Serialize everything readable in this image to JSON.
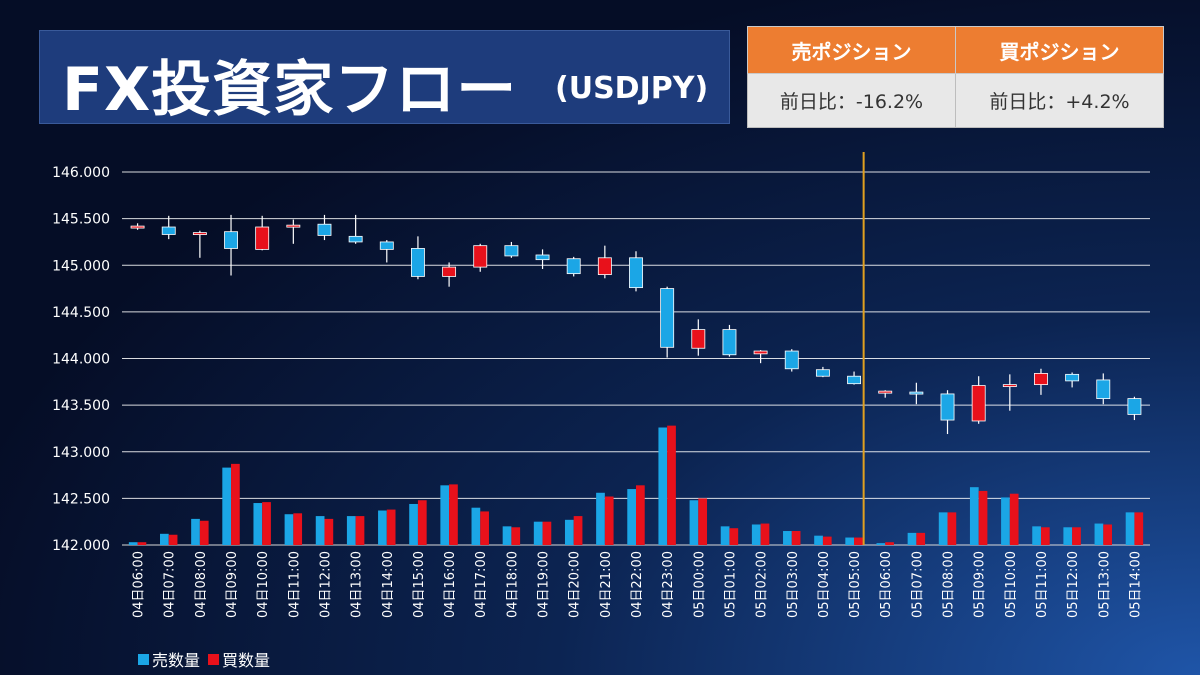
{
  "title": {
    "main": "FX投資家フロー",
    "pair": "(USDJPY)"
  },
  "positions": {
    "sell": {
      "header": "売ポジション",
      "change": "前日比：-16.2%"
    },
    "buy": {
      "header": "買ポジション",
      "change": "前日比：+4.2%"
    }
  },
  "legend": {
    "sell": "売数量",
    "buy": "買数量"
  },
  "colors": {
    "sell": "#1ba6e6",
    "buy": "#e8111b",
    "divider": "#e0a020",
    "grid": "#ffffff",
    "header": "#ed7d31"
  },
  "chart_data": {
    "type": "candlestick",
    "y_ticks": [
      "146.000",
      "145.500",
      "145.000",
      "144.500",
      "144.000",
      "143.500",
      "143.000",
      "142.500",
      "142.000"
    ],
    "ylim": [
      142.0,
      146.0
    ],
    "categories": [
      "04日06:00",
      "04日07:00",
      "04日08:00",
      "04日09:00",
      "04日10:00",
      "04日11:00",
      "04日12:00",
      "04日13:00",
      "04日14:00",
      "04日15:00",
      "04日16:00",
      "04日17:00",
      "04日18:00",
      "04日19:00",
      "04日20:00",
      "04日21:00",
      "04日22:00",
      "04日23:00",
      "05日00:00",
      "05日01:00",
      "05日02:00",
      "05日03:00",
      "05日04:00",
      "05日05:00",
      "05日06:00",
      "05日07:00",
      "05日08:00",
      "05日09:00",
      "05日10:00",
      "05日11:00",
      "05日12:00",
      "05日13:00",
      "05日14:00"
    ],
    "ohlc": [
      [
        145.4,
        145.45,
        145.38,
        145.42
      ],
      [
        145.41,
        145.53,
        145.28,
        145.33
      ],
      [
        145.34,
        145.37,
        145.08,
        145.35
      ],
      [
        145.36,
        145.54,
        144.89,
        145.18
      ],
      [
        145.17,
        145.53,
        145.16,
        145.41
      ],
      [
        145.41,
        145.49,
        145.23,
        145.43
      ],
      [
        145.44,
        145.54,
        145.27,
        145.32
      ],
      [
        145.31,
        145.54,
        145.23,
        145.25
      ],
      [
        145.25,
        145.27,
        145.03,
        145.17
      ],
      [
        145.18,
        145.31,
        144.85,
        144.88
      ],
      [
        144.88,
        145.03,
        144.77,
        144.98
      ],
      [
        144.98,
        145.23,
        144.93,
        145.21
      ],
      [
        145.21,
        145.25,
        145.08,
        145.1
      ],
      [
        145.11,
        145.17,
        144.96,
        145.06
      ],
      [
        145.07,
        145.09,
        144.88,
        144.91
      ],
      [
        144.9,
        145.21,
        144.86,
        145.08
      ],
      [
        145.08,
        145.15,
        144.72,
        144.76
      ],
      [
        144.75,
        144.77,
        144.01,
        144.12
      ],
      [
        144.11,
        144.42,
        144.03,
        144.31
      ],
      [
        144.31,
        144.36,
        144.02,
        144.04
      ],
      [
        144.05,
        144.09,
        143.95,
        144.08
      ],
      [
        144.08,
        144.1,
        143.86,
        143.89
      ],
      [
        143.88,
        143.91,
        143.8,
        143.81
      ],
      [
        143.81,
        143.86,
        143.72,
        143.73
      ],
      [
        143.64,
        143.66,
        143.58,
        143.65
      ],
      [
        143.64,
        143.74,
        143.51,
        143.62
      ],
      [
        143.62,
        143.66,
        143.19,
        143.34
      ],
      [
        143.33,
        143.81,
        143.3,
        143.71
      ],
      [
        143.72,
        143.83,
        143.44,
        143.72
      ],
      [
        143.72,
        143.89,
        143.61,
        143.84
      ],
      [
        143.83,
        143.85,
        143.69,
        143.76
      ],
      [
        143.77,
        143.84,
        143.51,
        143.57
      ],
      [
        143.57,
        143.59,
        143.34,
        143.4
      ]
    ],
    "sell_volume": [
      142.03,
      142.12,
      142.28,
      142.83,
      142.45,
      142.33,
      142.31,
      142.31,
      142.37,
      142.44,
      142.64,
      142.4,
      142.2,
      142.25,
      142.27,
      142.56,
      142.6,
      143.26,
      142.48,
      142.2,
      142.22,
      142.15,
      142.1,
      142.08,
      142.02,
      142.13,
      142.35,
      142.62,
      142.51,
      142.2,
      142.19,
      142.23,
      142.35
    ],
    "buy_volume": [
      142.03,
      142.11,
      142.26,
      142.87,
      142.46,
      142.34,
      142.28,
      142.31,
      142.38,
      142.48,
      142.65,
      142.36,
      142.19,
      142.25,
      142.31,
      142.52,
      142.64,
      143.28,
      142.5,
      142.18,
      142.23,
      142.15,
      142.09,
      142.08,
      142.03,
      142.13,
      142.35,
      142.58,
      142.55,
      142.19,
      142.19,
      142.22,
      142.35
    ],
    "divider_after_index": 23
  }
}
